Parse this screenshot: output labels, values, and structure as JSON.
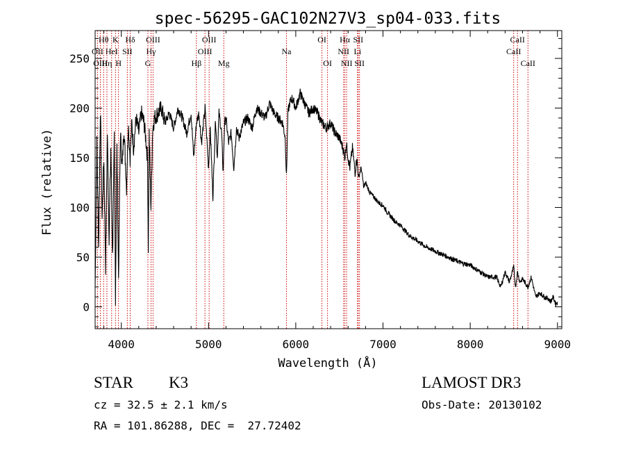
{
  "chart_data": {
    "type": "line",
    "title": "spec-56295-GAC102N27V3_sp04-033.fits",
    "xlabel": "Wavelength (Å)",
    "ylabel": "Flux (relative)",
    "xlim": [
      3700,
      9050
    ],
    "ylim": [
      -22,
      278
    ],
    "xticks": [
      4000,
      5000,
      6000,
      7000,
      8000,
      9000
    ],
    "xticks_minor_step": 200,
    "yticks": [
      0,
      50,
      100,
      150,
      200,
      250
    ],
    "yticks_minor_step": 10,
    "line_color": "#000000",
    "marker_color": "#cc0000",
    "series": [
      {
        "name": "flux",
        "x": [
          3700,
          3720,
          3740,
          3760,
          3780,
          3800,
          3820,
          3840,
          3860,
          3880,
          3900,
          3920,
          3933,
          3950,
          3968,
          3990,
          4010,
          4030,
          4060,
          4080,
          4101,
          4120,
          4140,
          4170,
          4200,
          4230,
          4260,
          4280,
          4300,
          4310,
          4320,
          4340,
          4360,
          4380,
          4420,
          4460,
          4500,
          4550,
          4600,
          4650,
          4700,
          4750,
          4800,
          4830,
          4861,
          4890,
          4920,
          4960,
          5000,
          5020,
          5050,
          5080,
          5100,
          5120,
          5150,
          5167,
          5184,
          5200,
          5230,
          5260,
          5290,
          5320,
          5350,
          5400,
          5450,
          5500,
          5550,
          5600,
          5650,
          5700,
          5750,
          5800,
          5850,
          5880,
          5893,
          5910,
          5930,
          5960,
          6000,
          6050,
          6100,
          6150,
          6200,
          6250,
          6300,
          6350,
          6400,
          6450,
          6500,
          6540,
          6563,
          6580,
          6600,
          6620,
          6650,
          6680,
          6700,
          6720,
          6750,
          6780,
          6800,
          6850,
          6900,
          6950,
          7000,
          7050,
          7100,
          7150,
          7200,
          7300,
          7400,
          7500,
          7600,
          7700,
          7800,
          7900,
          8000,
          8100,
          8200,
          8300,
          8350,
          8400,
          8450,
          8498,
          8520,
          8542,
          8570,
          8600,
          8662,
          8700,
          8750,
          8800,
          8850,
          8900,
          8920,
          8950,
          8980,
          9000
        ],
        "y": [
          20,
          165,
          60,
          200,
          90,
          150,
          40,
          175,
          70,
          160,
          50,
          170,
          10,
          160,
          30,
          175,
          140,
          180,
          120,
          185,
          150,
          185,
          160,
          190,
          175,
          195,
          185,
          170,
          150,
          60,
          175,
          100,
          180,
          190,
          195,
          200,
          185,
          195,
          180,
          200,
          190,
          175,
          195,
          150,
          185,
          195,
          165,
          200,
          140,
          180,
          110,
          190,
          150,
          195,
          175,
          135,
          185,
          190,
          165,
          175,
          140,
          180,
          170,
          185,
          190,
          180,
          200,
          195,
          190,
          205,
          195,
          190,
          185,
          170,
          130,
          195,
          205,
          210,
          200,
          215,
          205,
          195,
          200,
          195,
          185,
          180,
          185,
          175,
          170,
          160,
          150,
          165,
          150,
          140,
          160,
          135,
          150,
          130,
          140,
          120,
          125,
          115,
          110,
          105,
          102,
          95,
          90,
          85,
          82,
          72,
          66,
          60,
          56,
          52,
          48,
          44,
          42,
          36,
          30,
          30,
          20,
          35,
          25,
          40,
          20,
          35,
          25,
          28,
          20,
          30,
          10,
          14,
          10,
          8,
          5,
          10,
          3,
          5
        ]
      }
    ],
    "line_markers": [
      {
        "label": "Hθ",
        "x": 3797,
        "row": 1
      },
      {
        "label": "OII",
        "x": 3727,
        "row": 2
      },
      {
        "label": "OIII",
        "x": 3760,
        "row": 3
      },
      {
        "label": "K",
        "x": 3934,
        "row": 1
      },
      {
        "label": "HeI",
        "x": 3889,
        "row": 2
      },
      {
        "label": "Hη",
        "x": 3835,
        "row": 3
      },
      {
        "label": "Hδ",
        "x": 4102,
        "row": 1
      },
      {
        "label": "SII",
        "x": 4069,
        "row": 2
      },
      {
        "label": "H",
        "x": 3968,
        "row": 3
      },
      {
        "label": "OIII",
        "x": 4364,
        "row": 1
      },
      {
        "label": "Hγ",
        "x": 4341,
        "row": 2
      },
      {
        "label": "G",
        "x": 4305,
        "row": 3
      },
      {
        "label": "OIII",
        "x": 5007,
        "row": 1
      },
      {
        "label": "OIII",
        "x": 4959,
        "row": 2
      },
      {
        "label": "Hβ",
        "x": 4861,
        "row": 3
      },
      {
        "label": "Mg",
        "x": 5175,
        "row": 3
      },
      {
        "label": "Na",
        "x": 5893,
        "row": 2
      },
      {
        "label": "OI",
        "x": 6300,
        "row": 1
      },
      {
        "label": "OI",
        "x": 6364,
        "row": 3
      },
      {
        "label": "Hα",
        "x": 6563,
        "row": 1
      },
      {
        "label": "SII",
        "x": 6716,
        "row": 1
      },
      {
        "label": "NII",
        "x": 6548,
        "row": 2
      },
      {
        "label": "Li",
        "x": 6708,
        "row": 2
      },
      {
        "label": "NII",
        "x": 6583,
        "row": 3
      },
      {
        "label": "SII",
        "x": 6731,
        "row": 3
      },
      {
        "label": "CaII",
        "x": 8542,
        "row": 1
      },
      {
        "label": "CaII",
        "x": 8498,
        "row": 2
      },
      {
        "label": "CaII",
        "x": 8662,
        "row": 3
      }
    ]
  },
  "info": {
    "class_label": "STAR",
    "subclass": "K3",
    "survey": "LAMOST DR3",
    "cz": "cz = 32.5 ± 2.1 km/s",
    "obs_date": "Obs-Date: 20130102",
    "coords": "RA = 101.86288, DEC =  27.72402"
  }
}
